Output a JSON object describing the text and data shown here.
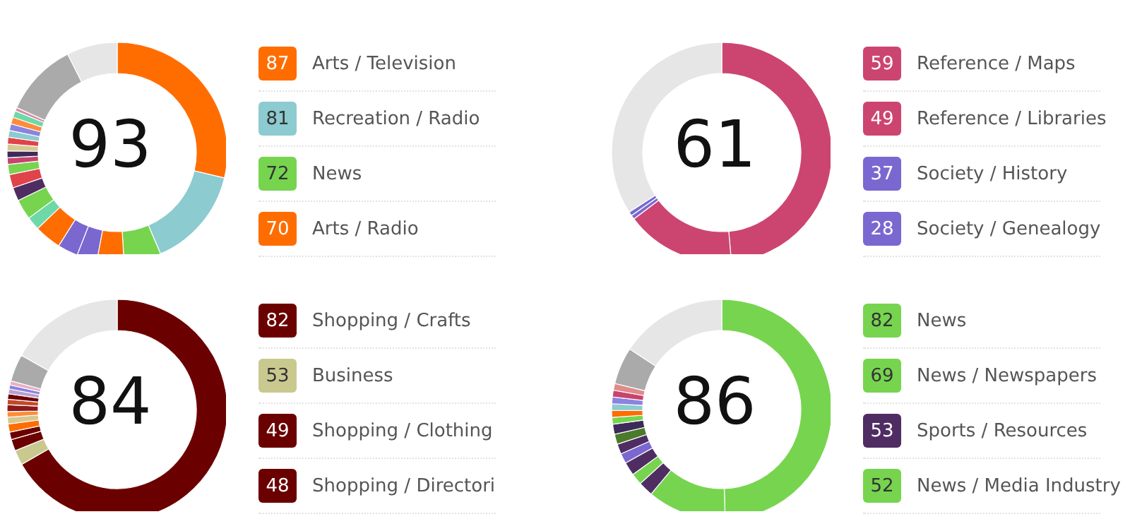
{
  "chart_data": [
    {
      "type": "donut",
      "legend": "right",
      "annotations": [
        "93",
        "87",
        "81",
        "72",
        "70"
      ],
      "categories": [
        "Arts / Television",
        "Recreation / Radio",
        "News",
        "Arts / Radio",
        null,
        null,
        null,
        null,
        null,
        null,
        null,
        null,
        null,
        null,
        null,
        null,
        null,
        null,
        null,
        null,
        null,
        null,
        null
      ],
      "values": [
        29,
        15,
        5.5,
        4,
        3,
        3,
        4,
        2,
        3,
        2,
        2,
        1.5,
        1,
        1,
        1,
        1,
        1,
        1,
        1,
        1,
        0.5,
        11,
        7.5
      ],
      "colors": [
        "#ff6d00",
        "#8ccbcf",
        "#77d44f",
        "#ff6d00",
        "#7a68d0",
        "#7a68d0",
        "#ff6d00",
        "#6fd8a8",
        "#77d44f",
        "#4f2d63",
        "#e0434a",
        "#77d44f",
        "#c8436e",
        "#3e2a5a",
        "#d7c88f",
        "#e0434a",
        "#8ccbcf",
        "#8a83e0",
        "#ff8c3a",
        "#6fd8a8",
        "#d88aa8",
        "#aaaaaa",
        "#e6e6e6"
      ]
    },
    {
      "type": "donut",
      "legend": "right",
      "annotations": [
        "61",
        "59",
        "49",
        "37",
        "28"
      ],
      "categories": [
        "Reference / Maps",
        "Reference / Libraries",
        "Society / History",
        "Society / Genealogy",
        null
      ],
      "values": [
        48.6,
        16.1,
        0.6,
        0.6,
        34.1
      ],
      "colors": [
        "#cc4571",
        "#cc4571",
        "#7a68d0",
        "#7a68d0",
        "#e6e6e6"
      ]
    },
    {
      "type": "donut",
      "legend": "right",
      "annotations": [
        "84",
        "82",
        "53",
        "49",
        "48"
      ],
      "categories": [
        "Shopping / Crafts",
        "Business",
        "Shopping / Clothing",
        "Shopping / Directori",
        null,
        null,
        null,
        null,
        null,
        null,
        null,
        null,
        null,
        null,
        null
      ],
      "values": [
        66.7,
        2.2,
        1.7,
        1.1,
        1.2,
        1,
        0.8,
        1,
        0.8,
        0.8,
        0.7,
        0.6,
        0.6,
        4,
        16.8
      ],
      "colors": [
        "#6b0000",
        "#c9c98f",
        "#6b0000",
        "#6b0000",
        "#ff6d00",
        "#d7c88f",
        "#ff8c3a",
        "#8b1a1a",
        "#c24a2a",
        "#6b0000",
        "#b8a0d0",
        "#8a83e0",
        "#e8b0c0",
        "#aaaaaa",
        "#e6e6e6"
      ]
    },
    {
      "type": "donut",
      "legend": "right",
      "annotations": [
        "86",
        "82",
        "69",
        "53",
        "52"
      ],
      "categories": [
        "News",
        "News / Newspapers",
        "Sports / Resources",
        "News / Media Industry",
        null,
        null,
        null,
        null,
        null,
        null,
        null,
        null,
        null,
        null,
        null,
        null,
        null
      ],
      "values": [
        50,
        11.7,
        2.2,
        1.7,
        2,
        1.5,
        1.5,
        1.5,
        1.5,
        1,
        1,
        1,
        1,
        1,
        1,
        5.5,
        15.9
      ],
      "colors": [
        "#77d44f",
        "#77d44f",
        "#4f2d63",
        "#77d44f",
        "#4f2d63",
        "#7a68d0",
        "#4f2d63",
        "#4a7a2a",
        "#3e2a5a",
        "#77d44f",
        "#ff6d00",
        "#8ccbcf",
        "#8a83e0",
        "#c8436e",
        "#e08a8a",
        "#aaaaaa",
        "#e6e6e6"
      ]
    }
  ]
}
